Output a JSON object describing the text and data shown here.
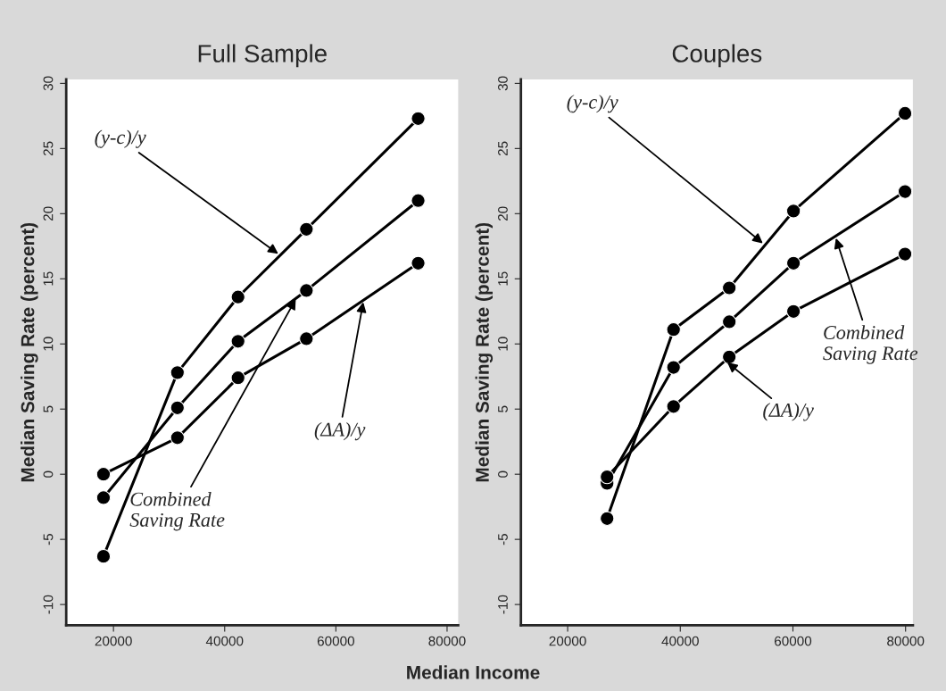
{
  "chart_data": [
    {
      "type": "line",
      "title": "Full Sample",
      "ylabel": "Median Saving Rate (percent)",
      "xlabel": "Median Income",
      "x": [
        18200,
        31500,
        42400,
        54700,
        74800
      ],
      "series": [
        {
          "color": "#000000",
          "values": [
            -6.3,
            7.8,
            13.6,
            18.8,
            27.3
          ]
        },
        {
          "color": "#000000",
          "values": [
            -1.8,
            5.1,
            10.2,
            14.1,
            21.0
          ]
        },
        {
          "color": "#000000",
          "values": [
            0.0,
            2.8,
            7.4,
            10.4,
            16.2
          ]
        }
      ],
      "annotations": [
        {
          "text": "(y-c)/y",
          "x": 50000,
          "y": 16.8
        },
        {
          "text": "Combined\nSaving Rate",
          "x": 53000,
          "y": 13.6
        },
        {
          "text": "(ΔA)/y",
          "x": 65000,
          "y": 13.4
        }
      ],
      "xlim": [
        11500,
        82000
      ],
      "ylim": [
        -11.6,
        30.3
      ],
      "xticks": [
        20000,
        40000,
        60000,
        80000
      ],
      "yticks": [
        -10,
        -5,
        0,
        5,
        10,
        15,
        20,
        25,
        30
      ],
      "marker": "circle",
      "line_style": "solid",
      "grid": false,
      "legend": false
    },
    {
      "type": "line",
      "title": "Couples",
      "ylabel": "Median Saving Rate (percent)",
      "x": [
        27000,
        38800,
        48700,
        60100,
        79900
      ],
      "series": [
        {
          "color": "#000000",
          "values": [
            -3.4,
            11.1,
            14.3,
            20.2,
            27.7
          ]
        },
        {
          "color": "#000000",
          "values": [
            -0.7,
            8.2,
            11.7,
            16.2,
            21.7
          ]
        },
        {
          "color": "#000000",
          "values": [
            -0.2,
            5.2,
            9.0,
            12.5,
            16.9
          ]
        }
      ],
      "annotations": [
        {
          "text": "(y-c)/y",
          "x": 55000,
          "y": 17.6
        },
        {
          "text": "Combined\nSaving Rate",
          "x": 67500,
          "y": 18.3
        },
        {
          "text": "(ΔA)/y",
          "x": 48000,
          "y": 8.7
        }
      ],
      "xlim": [
        11700,
        81300
      ],
      "ylim": [
        -11.6,
        30.3
      ],
      "xticks": [
        20000,
        40000,
        60000,
        80000
      ],
      "yticks": [
        -10,
        -5,
        0,
        5,
        10,
        15,
        20,
        25,
        30
      ],
      "marker": "circle",
      "line_style": "solid",
      "grid": false,
      "legend": false
    }
  ]
}
